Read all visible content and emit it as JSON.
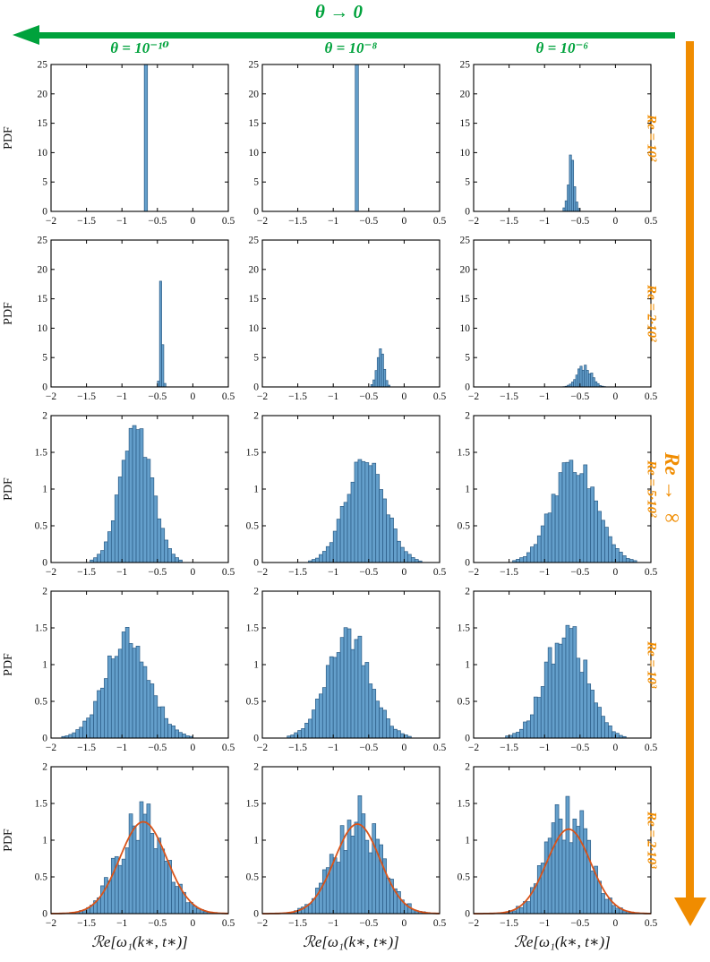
{
  "header": {
    "theta_arrow_label": "θ → 0"
  },
  "columns": [
    {
      "title": "θ = 10⁻¹⁰"
    },
    {
      "title": "θ = 10⁻⁸"
    },
    {
      "title": "θ = 10⁻⁶"
    }
  ],
  "rows": [
    {
      "label": "Re = 10²"
    },
    {
      "label": "Re = 2·10²"
    },
    {
      "label": "Re = 5·10²"
    },
    {
      "label": "Re = 10³"
    },
    {
      "label": "Re = 2·10³"
    }
  ],
  "re_arrow_label": "Re → ∞",
  "axes": {
    "ylabel": "PDF",
    "xlabel": "ℛe[ω₁(k∗, t∗)]",
    "xlim": [
      -2,
      0.5
    ],
    "xticks": [
      -2,
      -1.5,
      -1,
      -0.5,
      0,
      0.5
    ]
  },
  "colors": {
    "green": "#00a23c",
    "orange": "#f08c00",
    "bar_fill": "#649fcb",
    "bar_edge": "#2a5b85",
    "curve": "#d95319",
    "axis": "#000000"
  },
  "chart_data": [
    {
      "type": "histogram",
      "row": 0,
      "col": 0,
      "ylim": [
        0,
        25
      ],
      "yticks": [
        0,
        5,
        10,
        15,
        20,
        25
      ],
      "bin_width": 0.045,
      "bins": [
        [
          -0.685,
          26
        ]
      ],
      "curve": null
    },
    {
      "type": "histogram",
      "row": 0,
      "col": 1,
      "ylim": [
        0,
        25
      ],
      "yticks": [
        0,
        5,
        10,
        15,
        20,
        25
      ],
      "bin_width": 0.045,
      "bins": [
        [
          -0.69,
          26
        ]
      ],
      "curve": null
    },
    {
      "type": "histogram",
      "row": 0,
      "col": 2,
      "ylim": [
        0,
        25
      ],
      "yticks": [
        0,
        5,
        10,
        15,
        20,
        25
      ],
      "bin_width": 0.03,
      "bins": [
        [
          -0.74,
          0.6
        ],
        [
          -0.71,
          1.8
        ],
        [
          -0.68,
          4.5
        ],
        [
          -0.65,
          9.6
        ],
        [
          -0.62,
          8.7
        ],
        [
          -0.59,
          4.2
        ],
        [
          -0.56,
          1.6
        ],
        [
          -0.53,
          0.5
        ]
      ],
      "curve": null
    },
    {
      "type": "histogram",
      "row": 1,
      "col": 0,
      "ylim": [
        0,
        25
      ],
      "yticks": [
        0,
        5,
        10,
        15,
        20,
        25
      ],
      "bin_width": 0.03,
      "bins": [
        [
          -0.5,
          1.0
        ],
        [
          -0.47,
          18.0
        ],
        [
          -0.44,
          7.2
        ],
        [
          -0.41,
          0.6
        ]
      ],
      "curve": null
    },
    {
      "type": "histogram",
      "row": 1,
      "col": 1,
      "ylim": [
        0,
        25
      ],
      "yticks": [
        0,
        5,
        10,
        15,
        20,
        25
      ],
      "bin_width": 0.03,
      "bins": [
        [
          -0.47,
          0.4
        ],
        [
          -0.44,
          1.2
        ],
        [
          -0.41,
          2.8
        ],
        [
          -0.38,
          5.0
        ],
        [
          -0.35,
          6.5
        ],
        [
          -0.32,
          5.6
        ],
        [
          -0.29,
          3.0
        ],
        [
          -0.26,
          1.1
        ],
        [
          -0.23,
          0.3
        ]
      ],
      "curve": null
    },
    {
      "type": "histogram",
      "row": 1,
      "col": 2,
      "ylim": [
        0,
        25
      ],
      "yticks": [
        0,
        5,
        10,
        15,
        20,
        25
      ],
      "bin_width": 0.03,
      "gauss": {
        "mean": -0.44,
        "sigma": 0.1,
        "peak": 3.5,
        "noise": 0.18,
        "seed": 23
      },
      "curve": null
    },
    {
      "type": "histogram",
      "row": 2,
      "col": 0,
      "ylim": [
        0,
        2
      ],
      "yticks": [
        0,
        0.5,
        1,
        1.5,
        2
      ],
      "bin_width": 0.05,
      "gauss": {
        "mean": -0.8,
        "sigma": 0.22,
        "peak": 1.85,
        "noise": 0.1,
        "seed": 31
      },
      "curve": null
    },
    {
      "type": "histogram",
      "row": 2,
      "col": 1,
      "ylim": [
        0,
        2
      ],
      "yticks": [
        0,
        0.5,
        1,
        1.5,
        2
      ],
      "bin_width": 0.05,
      "gauss": {
        "mean": -0.55,
        "sigma": 0.27,
        "peak": 1.45,
        "noise": 0.12,
        "seed": 32
      },
      "curve": null
    },
    {
      "type": "histogram",
      "row": 2,
      "col": 2,
      "ylim": [
        0,
        2
      ],
      "yticks": [
        0,
        0.5,
        1,
        1.5,
        2
      ],
      "bin_width": 0.05,
      "gauss": {
        "mean": -0.58,
        "sigma": 0.3,
        "peak": 1.38,
        "noise": 0.15,
        "seed": 33
      },
      "curve": null
    },
    {
      "type": "histogram",
      "row": 3,
      "col": 0,
      "ylim": [
        0,
        2
      ],
      "yticks": [
        0,
        0.5,
        1,
        1.5,
        2
      ],
      "bin_width": 0.05,
      "gauss": {
        "mean": -0.92,
        "sigma": 0.31,
        "peak": 1.38,
        "noise": 0.15,
        "seed": 41
      },
      "curve": null
    },
    {
      "type": "histogram",
      "row": 3,
      "col": 1,
      "ylim": [
        0,
        2
      ],
      "yticks": [
        0,
        0.5,
        1,
        1.5,
        2
      ],
      "bin_width": 0.05,
      "gauss": {
        "mean": -0.78,
        "sigma": 0.3,
        "peak": 1.44,
        "noise": 0.15,
        "seed": 42
      },
      "curve": null
    },
    {
      "type": "histogram",
      "row": 3,
      "col": 2,
      "ylim": [
        0,
        2
      ],
      "yticks": [
        0,
        0.5,
        1,
        1.5,
        2
      ],
      "bin_width": 0.05,
      "gauss": {
        "mean": -0.7,
        "sigma": 0.29,
        "peak": 1.44,
        "noise": 0.18,
        "seed": 43
      },
      "curve": null
    },
    {
      "type": "histogram",
      "row": 4,
      "col": 0,
      "ylim": [
        0,
        2
      ],
      "yticks": [
        0,
        0.5,
        1,
        1.5,
        2
      ],
      "bin_width": 0.05,
      "gauss": {
        "mean": -0.72,
        "sigma": 0.33,
        "peak": 1.28,
        "noise": 0.26,
        "seed": 51
      },
      "curve": {
        "mean": -0.7,
        "sigma": 0.33,
        "peak": 1.25
      }
    },
    {
      "type": "histogram",
      "row": 4,
      "col": 1,
      "ylim": [
        0,
        2
      ],
      "yticks": [
        0,
        0.5,
        1,
        1.5,
        2
      ],
      "bin_width": 0.05,
      "gauss": {
        "mean": -0.66,
        "sigma": 0.33,
        "peak": 1.3,
        "noise": 0.26,
        "seed": 52
      },
      "curve": {
        "mean": -0.66,
        "sigma": 0.32,
        "peak": 1.22
      }
    },
    {
      "type": "histogram",
      "row": 4,
      "col": 2,
      "ylim": [
        0,
        2
      ],
      "yticks": [
        0,
        0.5,
        1,
        1.5,
        2
      ],
      "bin_width": 0.05,
      "gauss": {
        "mean": -0.66,
        "sigma": 0.3,
        "peak": 1.32,
        "noise": 0.32,
        "seed": 53
      },
      "curve": {
        "mean": -0.66,
        "sigma": 0.31,
        "peak": 1.15
      }
    }
  ]
}
